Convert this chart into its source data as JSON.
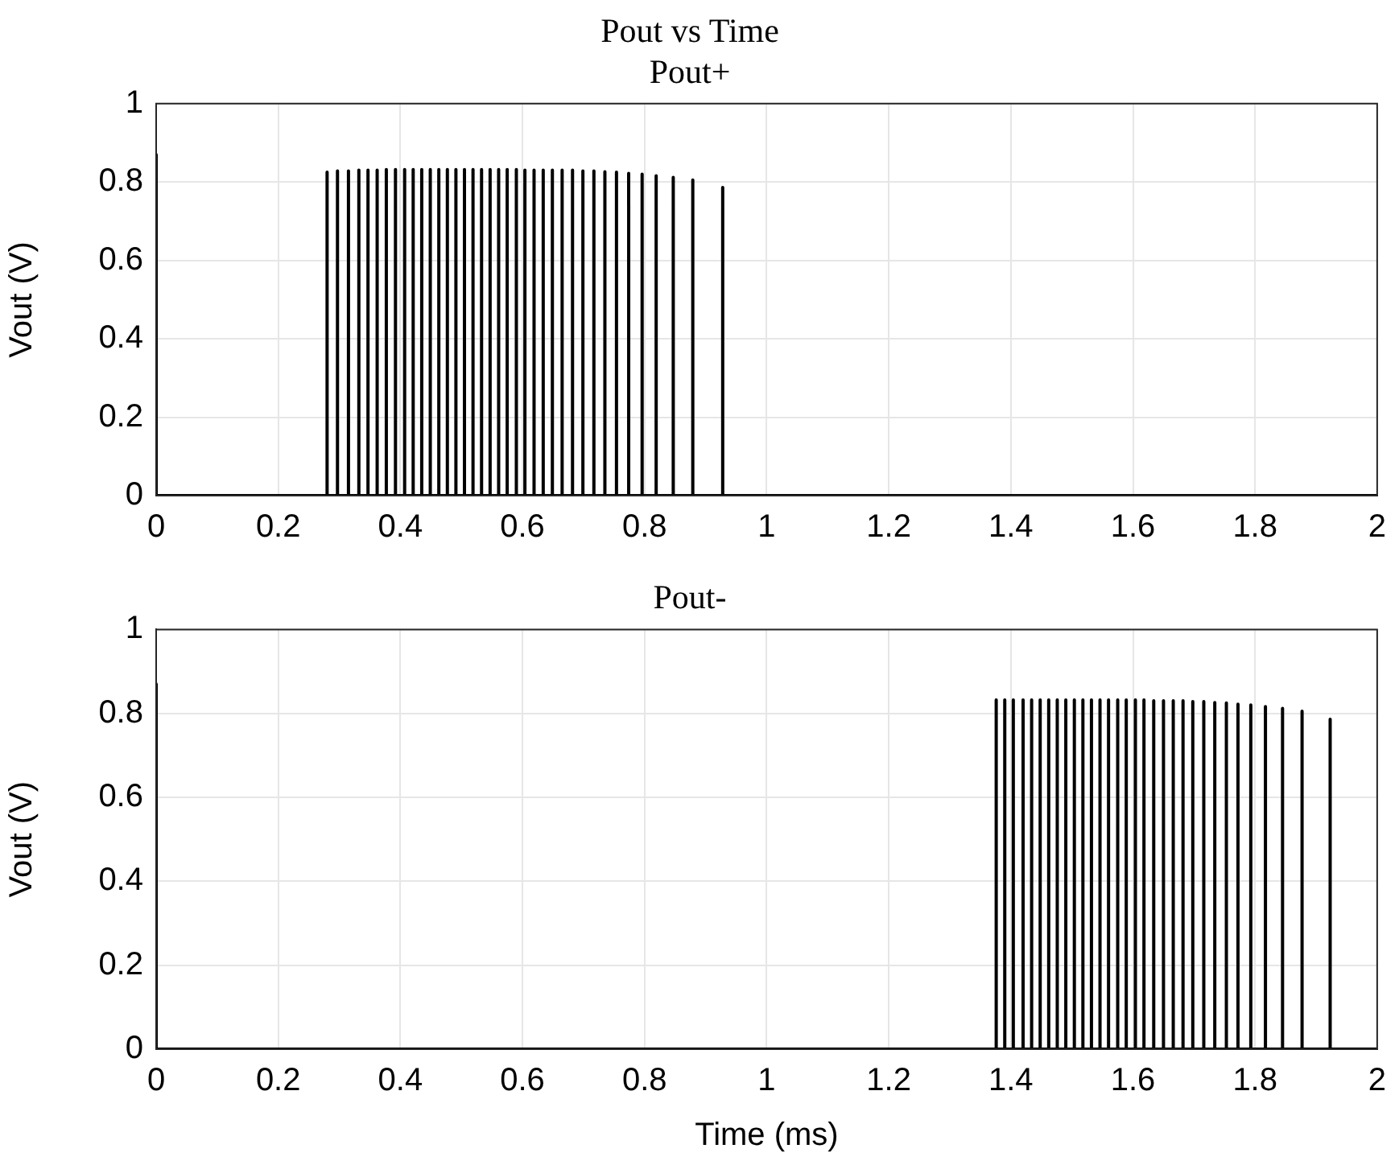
{
  "chart_data": [
    {
      "type": "line",
      "title": "Pout vs Time",
      "subtitle": "Pout+",
      "ylabel": "Vout (V)",
      "xlim": [
        0,
        2
      ],
      "xticks": [
        0,
        0.2,
        0.4,
        0.6,
        0.8,
        1,
        1.2,
        1.4,
        1.6,
        1.8,
        2
      ],
      "ylim": [
        0,
        1
      ],
      "yticks": [
        0,
        0.2,
        0.4,
        0.6,
        0.8,
        1
      ],
      "grid": true,
      "legend": false,
      "marker": "none",
      "line_style": "solid",
      "series": [
        {
          "color": "#000000",
          "x": [
            0,
            0,
            0.28,
            0.28,
            0.28,
            0.297,
            0.297,
            0.297,
            0.315,
            0.315,
            0.315,
            0.332,
            0.332,
            0.332,
            0.347,
            0.347,
            0.347,
            0.362,
            0.362,
            0.362,
            0.377,
            0.377,
            0.377,
            0.392,
            0.392,
            0.392,
            0.407,
            0.407,
            0.407,
            0.421,
            0.421,
            0.421,
            0.435,
            0.435,
            0.435,
            0.449,
            0.449,
            0.449,
            0.463,
            0.463,
            0.463,
            0.477,
            0.477,
            0.477,
            0.491,
            0.491,
            0.491,
            0.505,
            0.505,
            0.505,
            0.519,
            0.519,
            0.519,
            0.533,
            0.533,
            0.533,
            0.547,
            0.547,
            0.547,
            0.561,
            0.561,
            0.561,
            0.575,
            0.575,
            0.575,
            0.59,
            0.59,
            0.59,
            0.604,
            0.604,
            0.604,
            0.619,
            0.619,
            0.619,
            0.634,
            0.634,
            0.634,
            0.649,
            0.649,
            0.649,
            0.665,
            0.665,
            0.665,
            0.682,
            0.682,
            0.682,
            0.699,
            0.699,
            0.699,
            0.717,
            0.717,
            0.717,
            0.735,
            0.735,
            0.735,
            0.754,
            0.754,
            0.754,
            0.774,
            0.774,
            0.774,
            0.796,
            0.796,
            0.796,
            0.819,
            0.819,
            0.819,
            0.847,
            0.847,
            0.847,
            0.879,
            0.879,
            0.879,
            0.928,
            0.928,
            0.928,
            2
          ],
          "values": [
            0.87,
            0,
            0,
            0.825,
            0,
            0,
            0.828,
            0,
            0,
            0.828,
            0,
            0,
            0.83,
            0,
            0,
            0.83,
            0,
            0,
            0.83,
            0,
            0,
            0.832,
            0,
            0,
            0.832,
            0,
            0,
            0.832,
            0,
            0,
            0.832,
            0,
            0,
            0.832,
            0,
            0,
            0.832,
            0,
            0,
            0.832,
            0,
            0,
            0.832,
            0,
            0,
            0.832,
            0,
            0,
            0.832,
            0,
            0,
            0.832,
            0,
            0,
            0.832,
            0,
            0,
            0.832,
            0,
            0,
            0.832,
            0,
            0,
            0.832,
            0,
            0,
            0.832,
            0,
            0,
            0.83,
            0,
            0,
            0.83,
            0,
            0,
            0.83,
            0,
            0,
            0.83,
            0,
            0,
            0.83,
            0,
            0,
            0.83,
            0,
            0,
            0.828,
            0,
            0,
            0.828,
            0,
            0,
            0.826,
            0,
            0,
            0.825,
            0,
            0,
            0.822,
            0,
            0,
            0.82,
            0,
            0,
            0.816,
            0,
            0,
            0.812,
            0,
            0,
            0.805,
            0,
            0,
            0.786,
            0,
            0
          ]
        }
      ]
    },
    {
      "type": "line",
      "title": "Pout-",
      "xlabel": "Time (ms)",
      "ylabel": "Vout (V)",
      "xlim": [
        0,
        2
      ],
      "xticks": [
        0,
        0.2,
        0.4,
        0.6,
        0.8,
        1,
        1.2,
        1.4,
        1.6,
        1.8,
        2
      ],
      "ylim": [
        0,
        1
      ],
      "yticks": [
        0,
        0.2,
        0.4,
        0.6,
        0.8,
        1
      ],
      "grid": true,
      "legend": false,
      "marker": "none",
      "line_style": "solid",
      "series": [
        {
          "color": "#000000",
          "x": [
            0,
            0,
            1.376,
            1.376,
            1.376,
            1.39,
            1.39,
            1.39,
            1.404,
            1.404,
            1.404,
            1.42,
            1.42,
            1.42,
            1.434,
            1.434,
            1.434,
            1.448,
            1.448,
            1.448,
            1.462,
            1.462,
            1.462,
            1.476,
            1.476,
            1.476,
            1.49,
            1.49,
            1.49,
            1.504,
            1.504,
            1.504,
            1.518,
            1.518,
            1.518,
            1.532,
            1.532,
            1.532,
            1.546,
            1.546,
            1.546,
            1.56,
            1.56,
            1.56,
            1.575,
            1.575,
            1.575,
            1.589,
            1.589,
            1.589,
            1.604,
            1.604,
            1.604,
            1.618,
            1.618,
            1.618,
            1.634,
            1.634,
            1.634,
            1.65,
            1.65,
            1.65,
            1.666,
            1.666,
            1.666,
            1.682,
            1.682,
            1.682,
            1.698,
            1.698,
            1.698,
            1.716,
            1.716,
            1.716,
            1.734,
            1.734,
            1.734,
            1.753,
            1.753,
            1.753,
            1.772,
            1.772,
            1.772,
            1.793,
            1.793,
            1.793,
            1.817,
            1.817,
            1.817,
            1.845,
            1.845,
            1.845,
            1.877,
            1.877,
            1.877,
            1.923,
            1.923,
            1.923,
            2
          ],
          "values": [
            0.87,
            0,
            0,
            0.832,
            0,
            0,
            0.832,
            0,
            0,
            0.832,
            0,
            0,
            0.832,
            0,
            0,
            0.832,
            0,
            0,
            0.832,
            0,
            0,
            0.832,
            0,
            0,
            0.832,
            0,
            0,
            0.832,
            0,
            0,
            0.832,
            0,
            0,
            0.832,
            0,
            0,
            0.832,
            0,
            0,
            0.832,
            0,
            0,
            0.832,
            0,
            0,
            0.832,
            0,
            0,
            0.832,
            0,
            0,
            0.832,
            0,
            0,
            0.832,
            0,
            0,
            0.83,
            0,
            0,
            0.83,
            0,
            0,
            0.83,
            0,
            0,
            0.83,
            0,
            0,
            0.828,
            0,
            0,
            0.828,
            0,
            0,
            0.826,
            0,
            0,
            0.825,
            0,
            0,
            0.822,
            0,
            0,
            0.82,
            0,
            0,
            0.816,
            0,
            0,
            0.812,
            0,
            0,
            0.805,
            0,
            0,
            0.786,
            0,
            0
          ]
        }
      ]
    }
  ]
}
